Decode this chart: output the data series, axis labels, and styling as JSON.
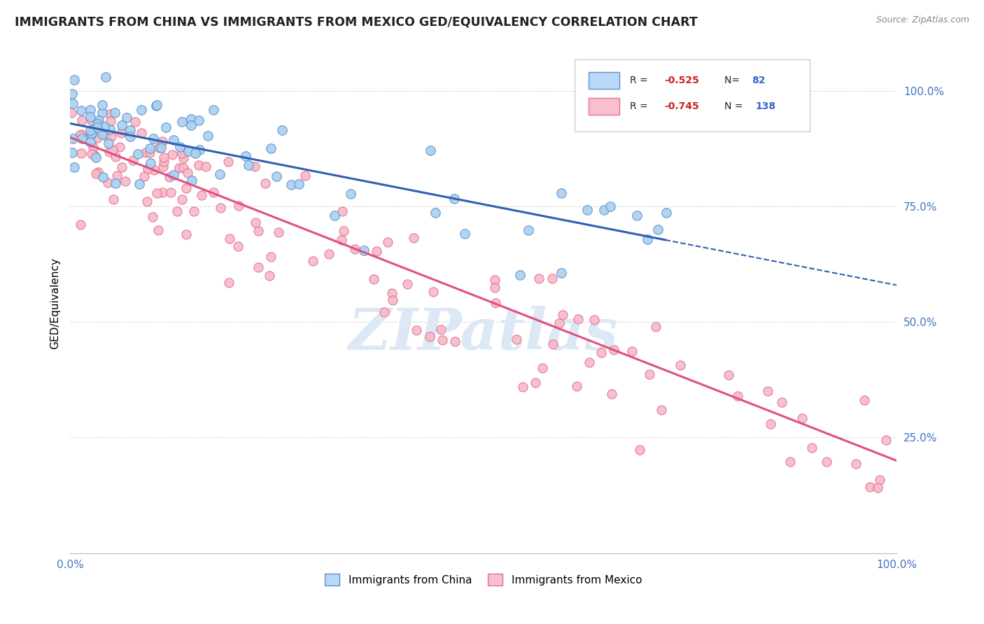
{
  "title": "IMMIGRANTS FROM CHINA VS IMMIGRANTS FROM MEXICO GED/EQUIVALENCY CORRELATION CHART",
  "source": "Source: ZipAtlas.com",
  "ylabel": "GED/Equivalency",
  "ytick_labels": [
    "100.0%",
    "75.0%",
    "50.0%",
    "25.0%"
  ],
  "ytick_positions": [
    1.0,
    0.75,
    0.5,
    0.25
  ],
  "xlim": [
    0.0,
    1.0
  ],
  "ylim": [
    0.0,
    1.08
  ],
  "china_R": -0.525,
  "china_N": 82,
  "mexico_R": -0.745,
  "mexico_N": 138,
  "china_scatter_color": "#a8d0f0",
  "china_edge_color": "#6090c8",
  "china_line_color": "#3060b0",
  "mexico_scatter_color": "#f8b8c8",
  "mexico_edge_color": "#e07090",
  "mexico_line_color": "#e05080",
  "legend_box_china_fill": "#b8d8f8",
  "legend_box_china_edge": "#6090c8",
  "legend_box_mexico_fill": "#f8c0cc",
  "legend_box_mexico_edge": "#e07090",
  "watermark_color": "#dce8f5",
  "background_color": "#ffffff",
  "grid_color": "#d8d8d8",
  "title_color": "#222222",
  "source_color": "#888888",
  "tick_color": "#4472c4",
  "china_line_x_solid_end": 0.72,
  "china_line_x0": 0.0,
  "china_line_y0": 0.93,
  "china_line_x1": 1.0,
  "china_line_y1": 0.58,
  "mexico_line_x0": 0.0,
  "mexico_line_y0": 0.9,
  "mexico_line_x1": 1.0,
  "mexico_line_y1": 0.2
}
